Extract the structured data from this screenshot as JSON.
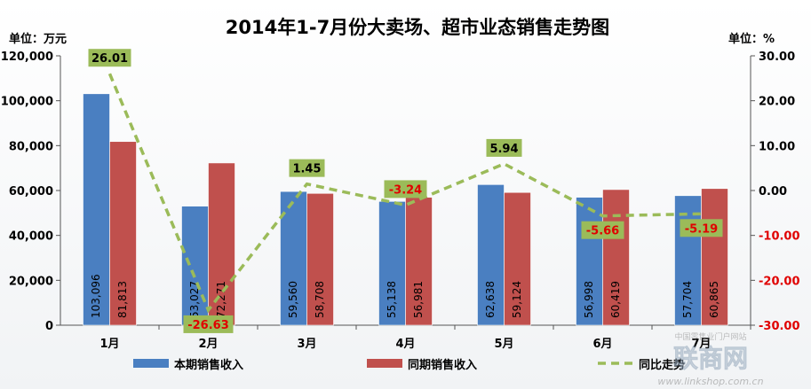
{
  "chart_data": {
    "type": "bar+line",
    "title": "2014年1-7月份大卖场、超市业态销售走势图",
    "left_unit": "单位：万元",
    "right_unit": "单位：%",
    "categories": [
      "1月",
      "2月",
      "3月",
      "4月",
      "5月",
      "6月",
      "7月"
    ],
    "y_left": {
      "min": 0,
      "max": 120000,
      "ticks": [
        "0",
        "20,000",
        "40,000",
        "60,000",
        "80,000",
        "100,000",
        "120,000"
      ]
    },
    "y_right": {
      "min": -30,
      "max": 30,
      "ticks": [
        "-30.00",
        "-20.00",
        "-10.00",
        "0.00",
        "10.00",
        "20.00",
        "30.00"
      ]
    },
    "series": [
      {
        "name": "本期销售收入",
        "kind": "bar",
        "axis": "left",
        "color": "#4a7fc1",
        "values": [
          103096,
          53027,
          59560,
          55138,
          62638,
          56998,
          57704
        ],
        "labels": [
          "103,096",
          "53,027",
          "59,560",
          "55,138",
          "62,638",
          "56,998",
          "57,704"
        ]
      },
      {
        "name": "同期销售收入",
        "kind": "bar",
        "axis": "left",
        "color": "#c0504d",
        "values": [
          81813,
          72271,
          58708,
          56981,
          59124,
          60419,
          60865
        ],
        "labels": [
          "81,813",
          "72,271",
          "58,708",
          "56,981",
          "59,124",
          "60,419",
          "60,865"
        ]
      },
      {
        "name": "同比走势",
        "kind": "line",
        "axis": "right",
        "color": "#9bbb59",
        "values": [
          26.01,
          -26.63,
          1.45,
          -3.24,
          5.94,
          -5.66,
          -5.19
        ],
        "labels": [
          "26.01",
          "-26.63",
          "1.45",
          "-3.24",
          "5.94",
          "-5.66",
          "-5.19"
        ]
      }
    ],
    "grid": false,
    "legend": "bottom",
    "watermark": {
      "line1": "中国零售业门户网站",
      "line2": "联商网",
      "line3": "www.linkshop.com.cn"
    }
  }
}
